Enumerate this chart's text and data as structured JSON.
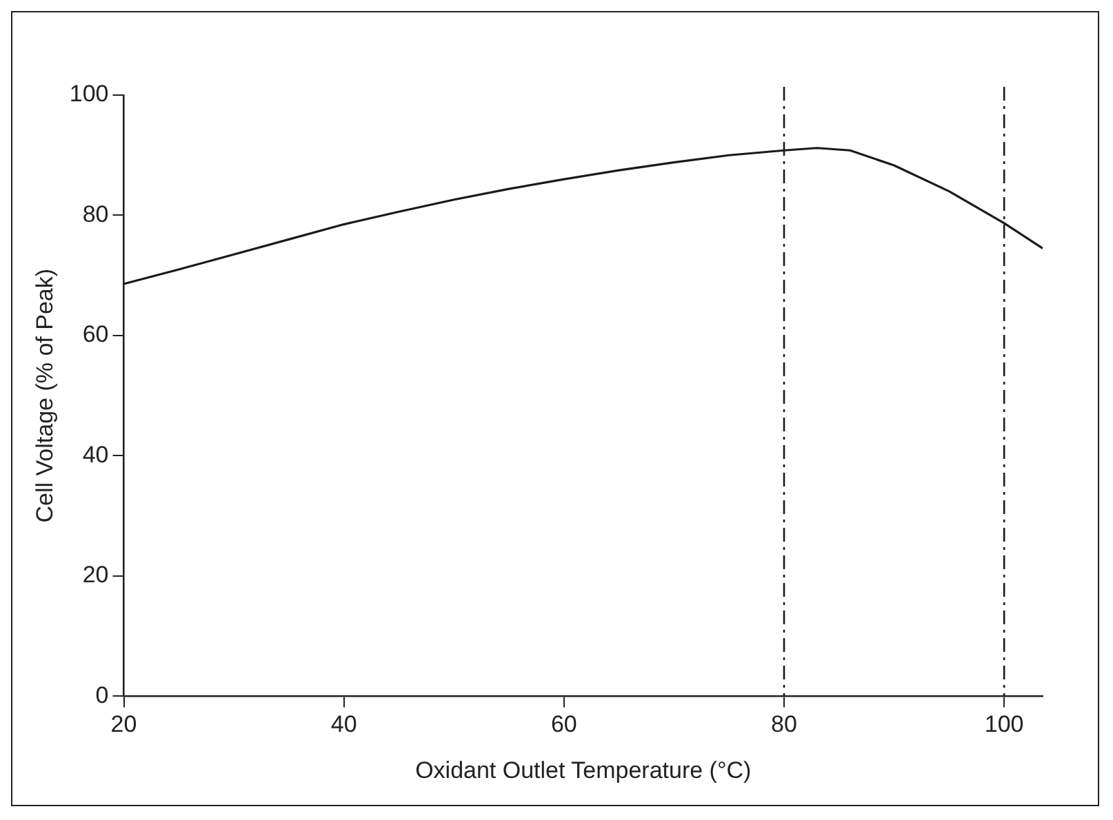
{
  "chart_data": {
    "type": "line",
    "xlabel": "Oxidant Outlet Temperature (°C)",
    "ylabel": "Cell Voltage (% of Peak)",
    "x": [
      20,
      25,
      30,
      35,
      40,
      45,
      50,
      55,
      60,
      65,
      70,
      75,
      80,
      83,
      86,
      90,
      95,
      100,
      103.5
    ],
    "series": [
      {
        "color": "#1a1a1a",
        "values": [
          68.6,
          71,
          73.5,
          76,
          78.5,
          80.6,
          82.6,
          84.4,
          86,
          87.5,
          88.8,
          90,
          90.8,
          91.2,
          90.8,
          88.3,
          84,
          78.7,
          74.5
        ]
      }
    ],
    "xlim": [
      20,
      103.5
    ],
    "xticks": [
      20,
      40,
      60,
      80,
      100
    ],
    "ylim": [
      0,
      100
    ],
    "yticks": [
      0,
      20,
      40,
      60,
      80,
      100
    ],
    "ref_lines": [
      {
        "axis": "x",
        "value": 80,
        "color": "#1a1a1a",
        "line_style": "dashed"
      },
      {
        "axis": "x",
        "value": 100,
        "color": "#1a1a1a",
        "line_style": "dashed"
      }
    ],
    "grid": false,
    "legend": false,
    "marker": "none",
    "line_style": "solid"
  }
}
